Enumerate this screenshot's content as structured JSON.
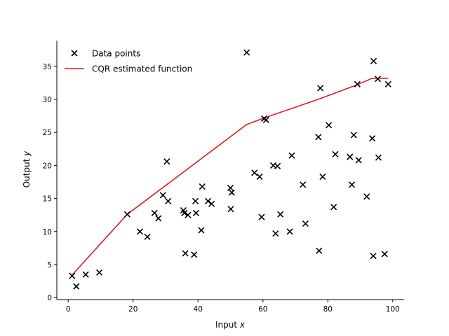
{
  "chart_data": {
    "type": "scatter",
    "title": "",
    "xlabel": "Input x",
    "xlabel_prefix": "Input ",
    "xlabel_var": "x",
    "ylabel": "Output y",
    "ylabel_prefix": "Output ",
    "ylabel_var": "y",
    "xlim": [
      -3.5,
      103.5
    ],
    "ylim": [
      -0.3,
      38.9
    ],
    "xticks": [
      0,
      20,
      40,
      60,
      80,
      100
    ],
    "yticks": [
      0,
      5,
      10,
      15,
      20,
      25,
      30,
      35
    ],
    "legend": {
      "placement": "top-left",
      "frame": false
    },
    "grid": false,
    "series": [
      {
        "name": "Data points",
        "kind": "scatter",
        "marker": "x",
        "color": "#000000",
        "points": [
          [
            1.2,
            3.3
          ],
          [
            2.5,
            1.7
          ],
          [
            5.4,
            3.5
          ],
          [
            9.6,
            3.8
          ],
          [
            18.2,
            12.6
          ],
          [
            22.1,
            10.0
          ],
          [
            24.4,
            9.2
          ],
          [
            26.6,
            12.8
          ],
          [
            27.8,
            12.0
          ],
          [
            29.2,
            15.5
          ],
          [
            30.4,
            20.6
          ],
          [
            30.8,
            14.6
          ],
          [
            35.5,
            13.2
          ],
          [
            35.8,
            12.8
          ],
          [
            36.1,
            6.7
          ],
          [
            36.9,
            12.5
          ],
          [
            38.8,
            6.5
          ],
          [
            39.2,
            14.6
          ],
          [
            39.4,
            12.8
          ],
          [
            41.0,
            10.2
          ],
          [
            41.3,
            16.8
          ],
          [
            43.1,
            14.6
          ],
          [
            44.2,
            14.2
          ],
          [
            50.0,
            16.6
          ],
          [
            50.1,
            13.4
          ],
          [
            50.4,
            15.9
          ],
          [
            55.0,
            37.1
          ],
          [
            57.4,
            18.9
          ],
          [
            59.0,
            18.3
          ],
          [
            59.6,
            12.2
          ],
          [
            60.4,
            27.1
          ],
          [
            61.0,
            26.9
          ],
          [
            63.2,
            20.0
          ],
          [
            63.9,
            9.7
          ],
          [
            64.5,
            19.9
          ],
          [
            65.4,
            12.6
          ],
          [
            68.3,
            10.0
          ],
          [
            68.9,
            21.5
          ],
          [
            72.3,
            17.1
          ],
          [
            73.1,
            11.2
          ],
          [
            77.1,
            24.3
          ],
          [
            77.3,
            7.1
          ],
          [
            77.7,
            31.7
          ],
          [
            78.4,
            18.3
          ],
          [
            80.3,
            26.1
          ],
          [
            81.8,
            13.7
          ],
          [
            82.3,
            21.7
          ],
          [
            86.8,
            21.3
          ],
          [
            87.4,
            17.1
          ],
          [
            88.0,
            24.6
          ],
          [
            89.1,
            32.3
          ],
          [
            89.5,
            20.8
          ],
          [
            92.0,
            15.3
          ],
          [
            93.7,
            24.1
          ],
          [
            94.0,
            6.3
          ],
          [
            94.1,
            35.8
          ],
          [
            95.4,
            33.1
          ],
          [
            95.6,
            21.2
          ],
          [
            97.5,
            6.6
          ],
          [
            98.6,
            32.3
          ]
        ]
      },
      {
        "name": "CQR estimated function",
        "kind": "line",
        "color": "#e41a1a",
        "points": [
          [
            1.0,
            3.3
          ],
          [
            18.2,
            12.6
          ],
          [
            55.0,
            26.2
          ],
          [
            61.0,
            27.3
          ],
          [
            77.0,
            30.0
          ],
          [
            89.0,
            32.2
          ],
          [
            93.7,
            33.2
          ],
          [
            98.6,
            33.2
          ]
        ]
      }
    ]
  }
}
